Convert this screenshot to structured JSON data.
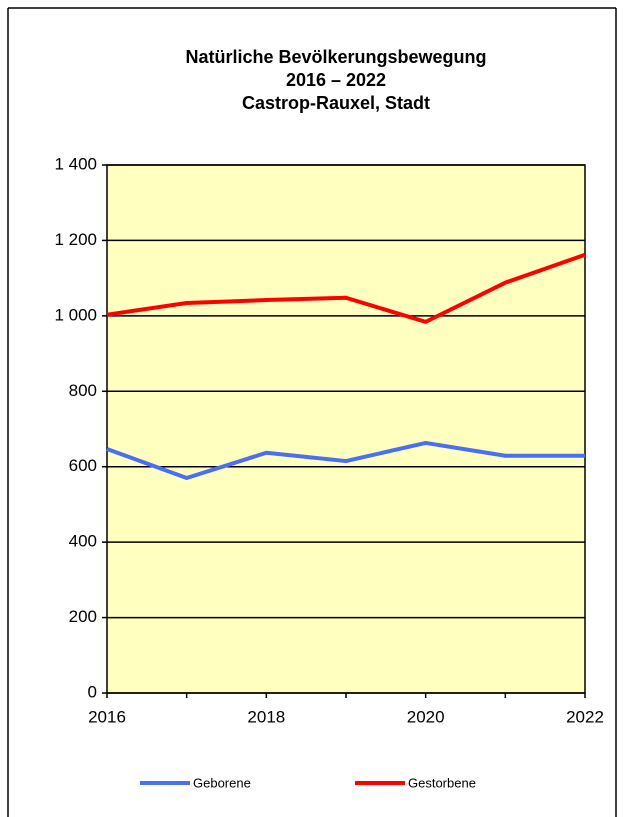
{
  "chart_data": {
    "type": "line",
    "title": [
      "Natürliche Bevölkerungsbewegung",
      "2016 – 2022",
      "Castrop-Rauxel, Stadt"
    ],
    "x": [
      2016,
      2017,
      2018,
      2019,
      2020,
      2021,
      2022
    ],
    "series": [
      {
        "name": "Geborene",
        "color": "#4a6ef5",
        "values": [
          647,
          570,
          637,
          615,
          663,
          629,
          629
        ]
      },
      {
        "name": "Gestorbene",
        "color": "#ff0000",
        "values": [
          1003,
          1034,
          1042,
          1048,
          984,
          1088,
          1162
        ]
      }
    ],
    "xlim": [
      2016,
      2022
    ],
    "xticks": [
      2016,
      2018,
      2020,
      2022
    ],
    "ylim": [
      0,
      1400
    ],
    "yticks": [
      0,
      200,
      400,
      600,
      800,
      {
        "value": 1000,
        "label": "1 000"
      },
      {
        "value": 1200,
        "label": "1 200"
      },
      {
        "value": 1400,
        "label": "1 400"
      }
    ],
    "grid": true,
    "legend": "bottom",
    "background": "#ffffc0"
  }
}
